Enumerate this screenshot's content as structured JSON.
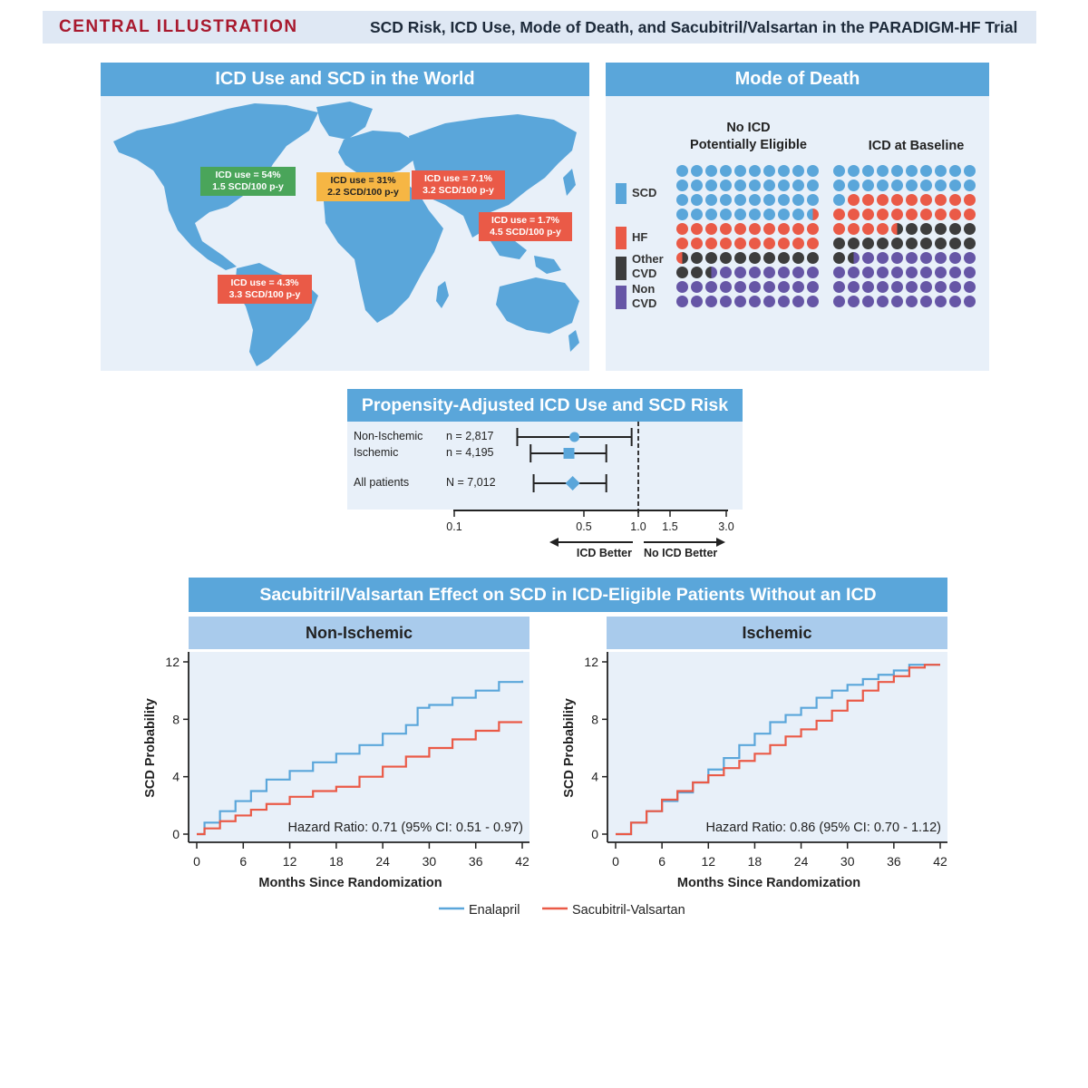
{
  "header": {
    "tag": "CENTRAL ILLUSTRATION",
    "title": "SCD Risk, ICD Use, Mode of Death, and Sacubitril/Valsartan in the PARADIGM-HF Trial"
  },
  "world": {
    "title": "ICD Use and SCD in the World",
    "labels": [
      {
        "line1": "ICD use = 54%",
        "line2": "1.5 SCD/100 p-y",
        "color": "#4aa55a"
      },
      {
        "line1": "ICD use = 31%",
        "line2": "2.2 SCD/100 p-y",
        "color": "#f6b644"
      },
      {
        "line1": "ICD use = 7.1%",
        "line2": "3.2 SCD/100 p-y",
        "color": "#ea5a47"
      },
      {
        "line1": "ICD use = 1.7%",
        "line2": "4.5 SCD/100 p-y",
        "color": "#ea5a47"
      },
      {
        "line1": "ICD use = 4.3%",
        "line2": "3.3 SCD/100 p-y",
        "color": "#ea5a47"
      }
    ]
  },
  "mode": {
    "title": "Mode of Death",
    "group1_line1": "No ICD",
    "group1_line2": "Potentially Eligible",
    "group2": "ICD at Baseline",
    "legend": [
      {
        "label1": "SCD",
        "label2": "",
        "color": "#5aa6da"
      },
      {
        "label1": "HF",
        "label2": "",
        "color": "#ea5a47"
      },
      {
        "label1": "Other",
        "label2": "CVD",
        "color": "#3d3d3d"
      },
      {
        "label1": "Non",
        "label2": "CVD",
        "color": "#6656a6"
      }
    ],
    "waffle_counts": {
      "no_icd": {
        "SCD": 39.5,
        "HF": 21,
        "Other CVD": 12,
        "Non CVD": 27.5
      },
      "icd": {
        "SCD": 21,
        "HF": 23.5,
        "Other CVD": 17,
        "Non CVD": 38.5
      }
    }
  },
  "forest": {
    "title": "Propensity-Adjusted ICD Use and SCD Risk",
    "rows": [
      {
        "label": "Non-Ischemic",
        "n": "n = 2,817",
        "hr": 0.45,
        "lo": 0.22,
        "hi": 0.92
      },
      {
        "label": "Ischemic",
        "n": "n = 4,195",
        "hr": 0.42,
        "lo": 0.26,
        "hi": 0.67
      },
      {
        "label": "All patients",
        "n": "N = 7,012",
        "hr": 0.44,
        "lo": 0.27,
        "hi": 0.67
      }
    ],
    "ticks": [
      "0.1",
      "0.5",
      "1.0",
      "1.5",
      "3.0"
    ],
    "left_label": "ICD Better",
    "right_label": "No ICD Better"
  },
  "km": {
    "title": "Sacubitril/Valsartan Effect on SCD in ICD-Eligible Patients Without an ICD",
    "xlabel": "Months Since Randomization",
    "ylabel": "SCD Probability",
    "legend": [
      {
        "name": "Enalapril",
        "color": "#5aa6da"
      },
      {
        "name": "Sacubitril-Valsartan",
        "color": "#ea5a47"
      }
    ]
  },
  "chart_data": [
    {
      "type": "line",
      "title": "Non-Ischemic",
      "xlabel": "Months Since Randomization",
      "ylabel": "SCD Probability",
      "xlim": [
        0,
        42
      ],
      "ylim": [
        0,
        12
      ],
      "x_ticks": [
        "0",
        "6",
        "12",
        "18",
        "24",
        "30",
        "36",
        "42"
      ],
      "y_ticks": [
        "0",
        "4",
        "8",
        "12"
      ],
      "annotation": "Hazard Ratio: 0.71 (95% CI: 0.51 - 0.97)",
      "series": [
        {
          "name": "Enalapril",
          "color": "#5aa6da",
          "x": [
            0,
            1,
            3,
            5,
            7,
            9,
            12,
            15,
            18,
            21,
            24,
            27,
            28.5,
            30,
            33,
            36,
            39,
            42
          ],
          "y": [
            0,
            0.8,
            1.6,
            2.3,
            3.0,
            3.8,
            4.4,
            5.0,
            5.6,
            6.2,
            7.0,
            7.6,
            8.8,
            9.0,
            9.5,
            10.0,
            10.6,
            10.7
          ]
        },
        {
          "name": "Sacubitril-Valsartan",
          "color": "#ea5a47",
          "x": [
            0,
            1,
            3,
            5,
            7,
            9,
            12,
            15,
            18,
            21,
            24,
            27,
            30,
            33,
            36,
            39,
            42
          ],
          "y": [
            0,
            0.4,
            0.9,
            1.3,
            1.7,
            2.1,
            2.6,
            3.0,
            3.3,
            4.0,
            4.7,
            5.4,
            6.0,
            6.6,
            7.2,
            7.8,
            7.8
          ]
        }
      ]
    },
    {
      "type": "line",
      "title": "Ischemic",
      "xlabel": "Months Since Randomization",
      "ylabel": "SCD Probability",
      "xlim": [
        0,
        42
      ],
      "ylim": [
        0,
        12
      ],
      "x_ticks": [
        "0",
        "6",
        "12",
        "18",
        "24",
        "30",
        "36",
        "42"
      ],
      "y_ticks": [
        "0",
        "4",
        "8",
        "12"
      ],
      "annotation": "Hazard Ratio: 0.86 (95% CI: 0.70 - 1.12)",
      "series": [
        {
          "name": "Enalapril",
          "color": "#5aa6da",
          "x": [
            0,
            2,
            4,
            6,
            8,
            10,
            12,
            14,
            16,
            18,
            20,
            22,
            24,
            26,
            28,
            30,
            32,
            34,
            36,
            38,
            40,
            42
          ],
          "y": [
            0,
            0.8,
            1.6,
            2.3,
            2.9,
            3.6,
            4.5,
            5.3,
            6.2,
            7.0,
            7.8,
            8.3,
            8.8,
            9.5,
            10.0,
            10.4,
            10.8,
            11.1,
            11.4,
            11.8,
            11.8,
            11.8
          ]
        },
        {
          "name": "Sacubitril-Valsartan",
          "color": "#ea5a47",
          "x": [
            0,
            2,
            4,
            6,
            8,
            10,
            12,
            14,
            16,
            18,
            20,
            22,
            24,
            26,
            28,
            30,
            32,
            34,
            36,
            38,
            40,
            42
          ],
          "y": [
            0,
            0.8,
            1.6,
            2.4,
            3.0,
            3.6,
            4.1,
            4.6,
            5.1,
            5.6,
            6.2,
            6.8,
            7.3,
            7.9,
            8.6,
            9.3,
            10.0,
            10.6,
            11.0,
            11.6,
            11.8,
            11.8
          ]
        }
      ]
    }
  ]
}
